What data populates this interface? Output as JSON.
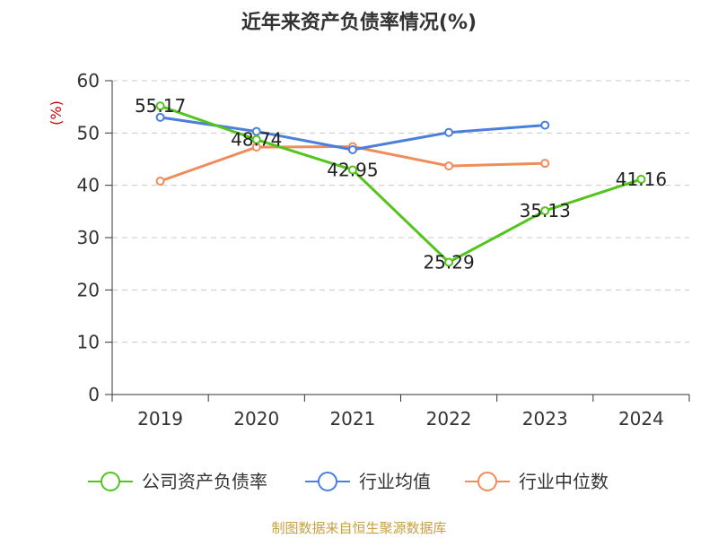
{
  "chart_data": {
    "type": "line",
    "title": "近年来资产负债率情况(%)",
    "y_unit": "(%)",
    "categories": [
      "2019",
      "2020",
      "2021",
      "2022",
      "2023",
      "2024"
    ],
    "ylim": [
      0,
      60
    ],
    "yticks": [
      0,
      10,
      20,
      30,
      40,
      50,
      60
    ],
    "grid": true,
    "legend_position": "bottom",
    "series": [
      {
        "name": "公司资产负债率",
        "color": "#52c41a",
        "values": [
          55.17,
          48.74,
          42.95,
          25.29,
          35.13,
          41.16
        ],
        "data_labels": [
          "55.17",
          "48.74",
          "42.95",
          "25.29",
          "35.13",
          "41.16"
        ]
      },
      {
        "name": "行业均值",
        "color": "#4a7fdc",
        "values": [
          53.0,
          50.3,
          46.8,
          50.1,
          51.5,
          null
        ]
      },
      {
        "name": "行业中位数",
        "color": "#f08c5a",
        "values": [
          40.8,
          47.3,
          47.4,
          43.7,
          44.2,
          null
        ]
      }
    ]
  },
  "source_text": "制图数据来自恒生聚源数据库"
}
